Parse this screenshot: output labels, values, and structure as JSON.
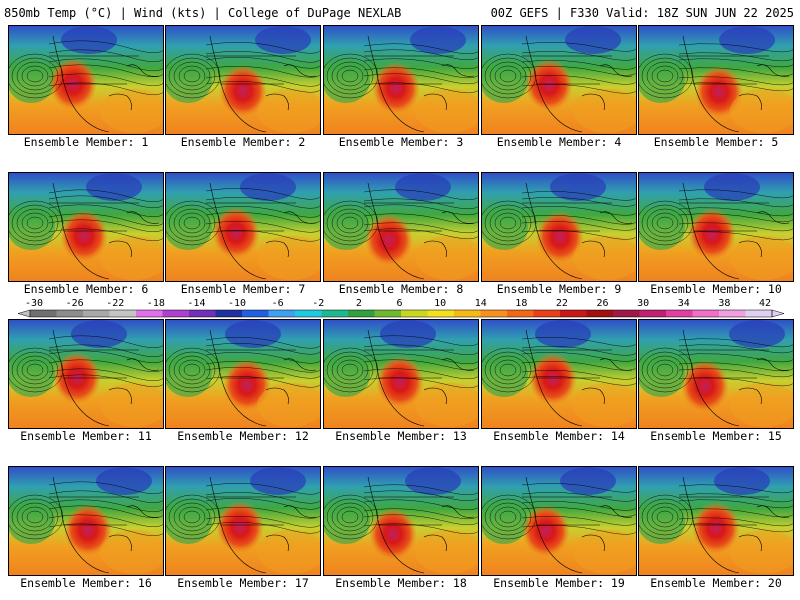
{
  "header": {
    "left_title": "850mb Temp (°C) | Wind (kts) | College of DuPage NEXLAB",
    "right_title": "00Z GEFS | F330 Valid: 18Z SUN JUN 22 2025"
  },
  "members": [
    "Ensemble Member: 1",
    "Ensemble Member: 2",
    "Ensemble Member: 3",
    "Ensemble Member: 4",
    "Ensemble Member: 5",
    "Ensemble Member: 6",
    "Ensemble Member: 7",
    "Ensemble Member: 8",
    "Ensemble Member: 9",
    "Ensemble Member: 10",
    "Ensemble Member: 11",
    "Ensemble Member: 12",
    "Ensemble Member: 13",
    "Ensemble Member: 14",
    "Ensemble Member: 15",
    "Ensemble Member: 16",
    "Ensemble Member: 17",
    "Ensemble Member: 18",
    "Ensemble Member: 19",
    "Ensemble Member: 20"
  ],
  "colorbar": {
    "labels": [
      "-30",
      "-26",
      "-22",
      "-18",
      "-14",
      "-10",
      "-6",
      "-2",
      "2",
      "6",
      "10",
      "14",
      "18",
      "22",
      "26",
      "30",
      "34",
      "38",
      "42"
    ],
    "colors": [
      "#707070",
      "#8c8c8c",
      "#a8a8a8",
      "#c4c4c4",
      "#e070e8",
      "#b040d0",
      "#7030b8",
      "#2030a0",
      "#2060e0",
      "#40a0f0",
      "#20c8e0",
      "#20b890",
      "#30a040",
      "#70b830",
      "#c8d820",
      "#f0e020",
      "#f8b818",
      "#f89020",
      "#f06818",
      "#e84018",
      "#c81818",
      "#a01010",
      "#a01848",
      "#c02070",
      "#e040a0",
      "#f070c8",
      "#f0a0e0",
      "#e0d0f0"
    ]
  }
}
